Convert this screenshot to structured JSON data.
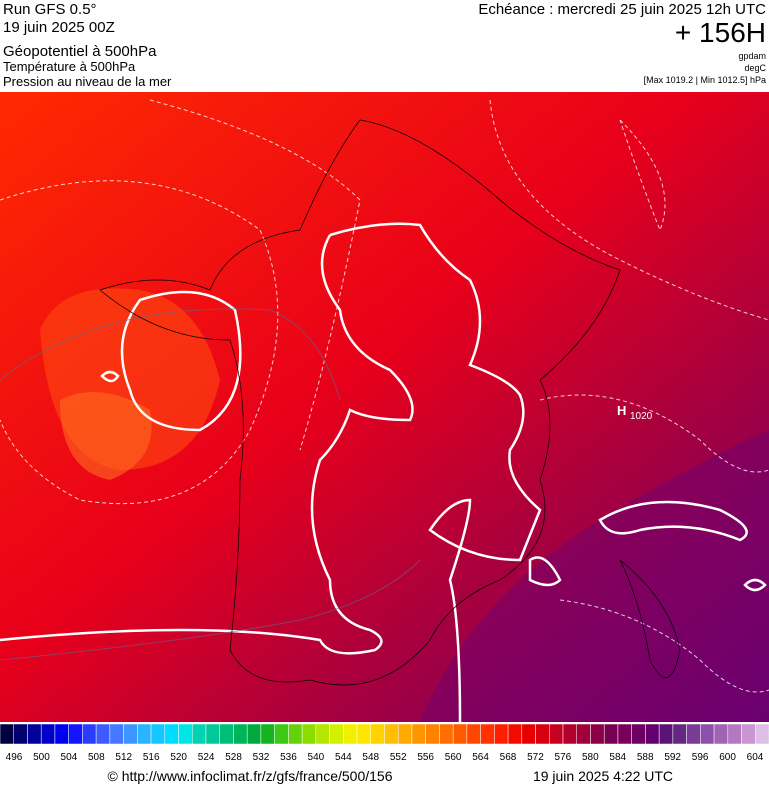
{
  "header": {
    "run": "Run GFS 0.5°",
    "date": "19 juin 2025 00Z",
    "title": "Géopotentiel à 500hPa",
    "line2": "Température à 500hPa",
    "line3": "Pression au niveau de la mer",
    "forecast": "Echéance : mercredi 25 juin 2025 12h UTC",
    "hour": "+ 156H",
    "unit1": "gpdam",
    "unit2": "degC",
    "range": "[Max 1019.2 | Min 1012.5] hPa"
  },
  "map": {
    "high_symbol": "H",
    "high_value": "1020"
  },
  "scale": {
    "labels": [
      496,
      500,
      504,
      508,
      512,
      516,
      520,
      524,
      528,
      532,
      536,
      540,
      544,
      548,
      552,
      556,
      560,
      564,
      568,
      572,
      576,
      580,
      584,
      588,
      592,
      596,
      600,
      604
    ],
    "colors": [
      "#000040",
      "#00006e",
      "#00009a",
      "#0000c8",
      "#0000f0",
      "#1414ff",
      "#2a3cff",
      "#3c5aff",
      "#4678ff",
      "#3c96ff",
      "#28b4ff",
      "#14c8ff",
      "#00dcff",
      "#00e6e6",
      "#00d2b4",
      "#00c896",
      "#00be78",
      "#00b45a",
      "#00aa3c",
      "#14b41e",
      "#3cc814",
      "#64d20a",
      "#8cdc00",
      "#b4e600",
      "#d2f000",
      "#f0f000",
      "#ffe600",
      "#ffd200",
      "#ffbe00",
      "#ffaa00",
      "#ff9600",
      "#ff8200",
      "#ff6e00",
      "#ff5a00",
      "#ff4600",
      "#ff3200",
      "#ff1e00",
      "#f50a00",
      "#e60000",
      "#d70010",
      "#c80020",
      "#b4002d",
      "#a0003c",
      "#8c0046",
      "#780050",
      "#78005a",
      "#6e0064",
      "#64006e",
      "#5a1478",
      "#642882",
      "#783c96",
      "#8c50aa",
      "#a064b4",
      "#b478c3",
      "#c896d2",
      "#dcbee6"
    ]
  },
  "footer": {
    "url": "© http://www.infoclimat.fr/z/gfs/france/500/156",
    "time": "19 juin 2025  4:22 UTC"
  }
}
